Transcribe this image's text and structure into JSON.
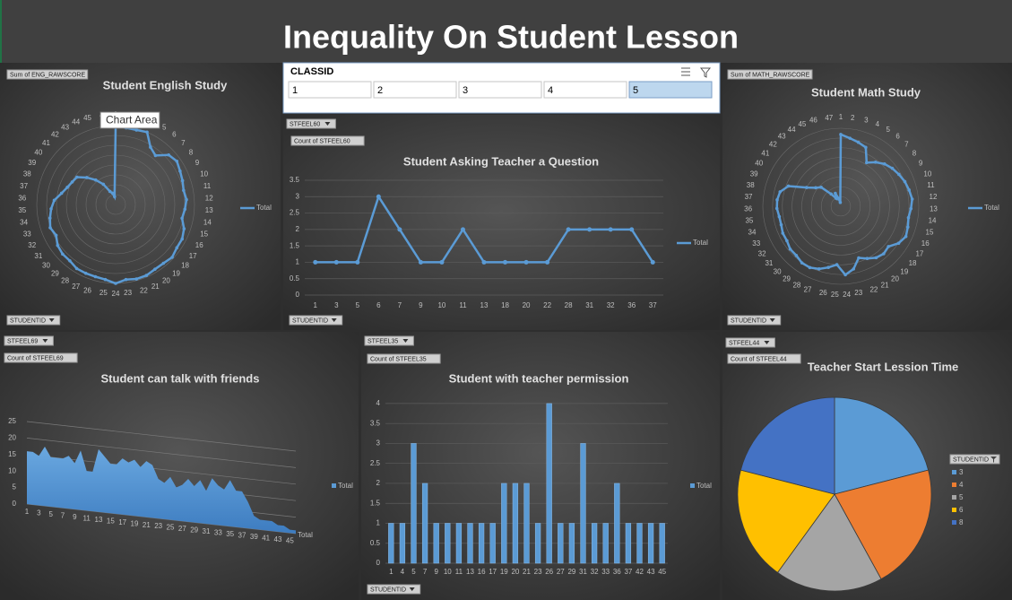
{
  "title": "Inequality On Student Lesson",
  "tooltip": "Chart Area",
  "slicer": {
    "title": "CLASSID",
    "items": [
      1,
      2,
      3,
      4,
      5
    ],
    "selected": 5
  },
  "chart_data": [
    {
      "type": "radar",
      "title": "Student English Study",
      "value_button": "Sum of ENG_RAWSCORE",
      "axis_button": "STUDENTID",
      "rlim": [
        0,
        100
      ],
      "categories": [
        1,
        2,
        3,
        4,
        5,
        6,
        7,
        8,
        9,
        10,
        11,
        12,
        13,
        14,
        15,
        16,
        17,
        18,
        19,
        20,
        21,
        22,
        23,
        24,
        25,
        26,
        27,
        28,
        29,
        30,
        31,
        32,
        33,
        34,
        35,
        36,
        37,
        38,
        39,
        40,
        41,
        42,
        43,
        44,
        45,
        46
      ],
      "series": [
        {
          "name": "Total",
          "color": "#5b9bd5",
          "values": [
            98,
            98,
            98,
            100,
            85,
            80,
            92,
            95,
            92,
            90,
            88,
            90,
            88,
            86,
            92,
            95,
            95,
            98,
            96,
            96,
            98,
            98,
            96,
            100,
            96,
            95,
            95,
            95,
            92,
            92,
            90,
            85,
            88,
            85,
            82,
            78,
            70,
            65,
            62,
            60,
            50,
            40,
            30,
            18,
            15,
            10
          ]
        }
      ]
    },
    {
      "type": "line",
      "title": "Student Asking Teacher a Question",
      "filter_button": "STFEEL60",
      "value_button": "Count of STFEEL60",
      "axis_button": "STUDENTID",
      "categories": [
        1,
        3,
        5,
        6,
        7,
        9,
        10,
        11,
        13,
        18,
        20,
        22,
        28,
        31,
        32,
        36,
        37
      ],
      "series": [
        {
          "name": "Total",
          "color": "#5b9bd5",
          "values": [
            1,
            1,
            1,
            3,
            2,
            1,
            1,
            2,
            1,
            1,
            1,
            1,
            2,
            2,
            2,
            2,
            1
          ]
        }
      ],
      "ylim": [
        0,
        3.5
      ],
      "yticks": [
        0,
        0.5,
        1,
        1.5,
        2,
        2.5,
        3,
        3.5
      ],
      "grid": true
    },
    {
      "type": "radar",
      "title": "Student Math Study",
      "value_button": "Sum of MATH_RAWSCORE",
      "axis_button": "STUDENTID",
      "rlim": [
        0,
        100
      ],
      "categories": [
        1,
        2,
        3,
        4,
        5,
        6,
        7,
        8,
        9,
        10,
        11,
        12,
        13,
        14,
        15,
        16,
        17,
        18,
        19,
        20,
        21,
        22,
        23,
        24,
        25,
        26,
        27,
        28,
        29,
        30,
        31,
        32,
        33,
        34,
        35,
        36,
        37,
        38,
        39,
        40,
        41,
        42,
        43,
        44,
        45,
        46,
        47
      ],
      "series": [
        {
          "name": "Total",
          "color": "#5b9bd5",
          "values": [
            92,
            88,
            85,
            82,
            65,
            72,
            78,
            82,
            85,
            88,
            90,
            92,
            90,
            88,
            90,
            92,
            88,
            80,
            82,
            80,
            75,
            70,
            82,
            88,
            75,
            80,
            85,
            88,
            88,
            85,
            85,
            82,
            82,
            80,
            80,
            82,
            82,
            80,
            72,
            50,
            40,
            35,
            20,
            12,
            18,
            10,
            5
          ]
        }
      ]
    },
    {
      "type": "area",
      "title": "Student can talk with friends",
      "filter_button": "STFEEL69",
      "value_button": "Count of STFEEL69",
      "depth_label": "Total",
      "categories": [
        1,
        null,
        3,
        null,
        5,
        null,
        7,
        null,
        9,
        null,
        11,
        null,
        13,
        null,
        15,
        null,
        17,
        null,
        19,
        null,
        21,
        null,
        23,
        null,
        25,
        null,
        27,
        null,
        29,
        null,
        31,
        null,
        33,
        null,
        35,
        null,
        37,
        null,
        39,
        null,
        41,
        null,
        43,
        null,
        45,
        null
      ],
      "series": [
        {
          "name": "Total",
          "color": "#5b9bd5",
          "values": [
            16,
            16,
            15,
            18,
            15,
            15,
            15,
            16,
            14,
            18,
            12,
            12,
            19,
            17,
            15,
            15,
            17,
            16,
            17,
            15,
            17,
            16,
            12,
            11,
            13,
            10,
            11,
            13,
            11,
            13,
            10,
            14,
            12,
            11,
            14,
            11,
            11,
            8,
            4,
            3,
            3,
            3,
            2,
            2,
            1,
            1
          ]
        }
      ],
      "ylim": [
        0,
        25
      ],
      "yticks": [
        0,
        5,
        10,
        15,
        20,
        25
      ],
      "grid": true
    },
    {
      "type": "bar",
      "title": "Student with teacher permission",
      "filter_button": "STFEEL35",
      "value_button": "Count of STFEEL35",
      "axis_button": "STUDENTID",
      "categories": [
        1,
        4,
        5,
        7,
        9,
        10,
        11,
        13,
        16,
        17,
        19,
        20,
        21,
        23,
        26,
        27,
        29,
        31,
        32,
        33,
        36,
        37,
        42,
        43,
        45
      ],
      "series": [
        {
          "name": "Total",
          "color": "#5b9bd5",
          "values": [
            1,
            1,
            3,
            2,
            1,
            1,
            1,
            1,
            1,
            1,
            2,
            2,
            2,
            1,
            4,
            1,
            1,
            3,
            1,
            1,
            2,
            1,
            1,
            1,
            1
          ]
        }
      ],
      "ylim": [
        0,
        4.2
      ],
      "yticks": [
        0,
        0.5,
        1,
        1.5,
        2,
        2.5,
        3,
        3.5,
        4
      ],
      "grid": true
    },
    {
      "type": "pie",
      "title": "Teacher Start Lession Time",
      "filter_button": "STFEEL44",
      "value_button": "Count of STFEEL44",
      "legend_title": "STUDENTID",
      "categories": [
        3,
        4,
        5,
        6,
        8
      ],
      "values": [
        21,
        21,
        18,
        19,
        21
      ],
      "colors": [
        "#5b9bd5",
        "#ed7d31",
        "#a5a5a5",
        "#ffc000",
        "#4472c4"
      ]
    }
  ]
}
